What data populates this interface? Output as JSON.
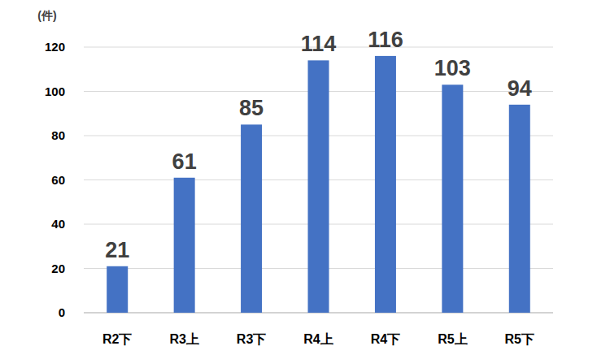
{
  "chart_data": {
    "type": "bar",
    "y_label": "(件)",
    "categories": [
      "R2下",
      "R3上",
      "R3下",
      "R4上",
      "R4下",
      "R5上",
      "R5下"
    ],
    "values": [
      21,
      61,
      85,
      114,
      116,
      103,
      94
    ],
    "color": "#4472c4",
    "ylim": [
      0,
      120
    ],
    "yticks": [
      0,
      20,
      40,
      60,
      80,
      100,
      120
    ],
    "grid": true,
    "data_labels": true
  }
}
